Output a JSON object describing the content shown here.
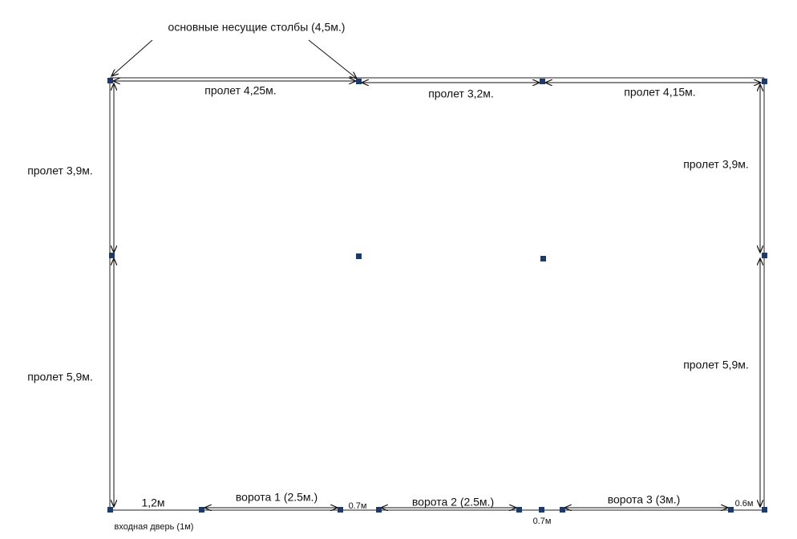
{
  "title": "основные несущие столбы (4,5м.)",
  "top_spans": [
    "пролет 4,25м.",
    "пролет 3,2м.",
    "пролет 4,15м."
  ],
  "left_spans": [
    "пролет 3,9м.",
    "пролет 5,9м."
  ],
  "right_spans": [
    "пролет 3,9м.",
    "пролет 5,9м."
  ],
  "bottom": {
    "door_offset": "1,2м",
    "gate_1": "ворота 1 (2.5м.)",
    "gap_1": "0.7м",
    "gate_2": "ворота 2 (2.5м.)",
    "gap_2": "0.7м",
    "gate_3": "ворота 3 (3м.)",
    "gap_3": "0.6м",
    "door": "входная дверь (1м)"
  }
}
